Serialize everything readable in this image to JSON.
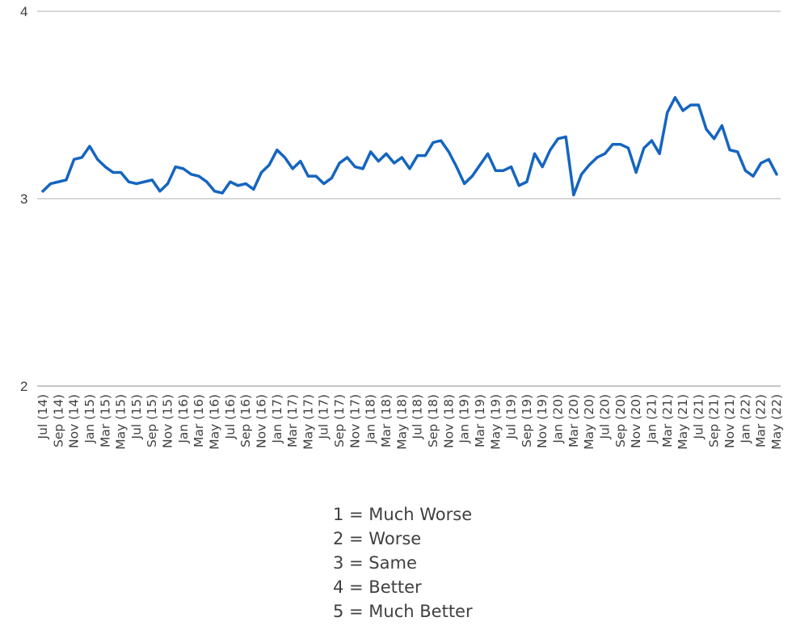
{
  "chart_data": {
    "type": "line",
    "title": "",
    "xlabel": "",
    "ylabel": "",
    "ylim": [
      2,
      4
    ],
    "yticks": [
      "2",
      "3",
      "4"
    ],
    "grid": "horizontal",
    "x": [
      "Jul (14)",
      "Aug (14)",
      "Sep (14)",
      "Oct (14)",
      "Nov (14)",
      "Dec (14)",
      "Jan (15)",
      "Feb (15)",
      "Mar (15)",
      "Apr (15)",
      "May (15)",
      "Jun (15)",
      "Jul (15)",
      "Aug (15)",
      "Sep (15)",
      "Oct (15)",
      "Nov (15)",
      "Dec (15)",
      "Jan (16)",
      "Feb (16)",
      "Mar (16)",
      "Apr (16)",
      "May (16)",
      "Jun (16)",
      "Jul (16)",
      "Aug (16)",
      "Sep (16)",
      "Oct (16)",
      "Nov (16)",
      "Dec (16)",
      "Jan (17)",
      "Feb (17)",
      "Mar (17)",
      "Apr (17)",
      "May (17)",
      "Jun (17)",
      "Jul (17)",
      "Aug (17)",
      "Sep (17)",
      "Oct (17)",
      "Nov (17)",
      "Dec (17)",
      "Jan (18)",
      "Feb (18)",
      "Mar (18)",
      "Apr (18)",
      "May (18)",
      "Jun (18)",
      "Jul (18)",
      "Aug (18)",
      "Sep (18)",
      "Oct (18)",
      "Nov (18)",
      "Dec (18)",
      "Jan (19)",
      "Feb (19)",
      "Mar (19)",
      "Apr (19)",
      "May (19)",
      "Jun (19)",
      "Jul (19)",
      "Aug (19)",
      "Sep (19)",
      "Oct (19)",
      "Nov (19)",
      "Dec (19)",
      "Jan (20)",
      "Feb (20)",
      "Mar (20)",
      "Apr (20)",
      "May (20)",
      "Jun (20)",
      "Jul (20)",
      "Aug (20)",
      "Sep (20)",
      "Oct (20)",
      "Nov (20)",
      "Dec (20)",
      "Jan (21)",
      "Feb (21)",
      "Mar (21)",
      "Apr (21)",
      "May (21)",
      "Jun (21)",
      "Jul (21)",
      "Aug (21)",
      "Sep (21)",
      "Oct (21)",
      "Nov (21)",
      "Dec (21)",
      "Jan (22)",
      "Feb (22)",
      "Mar (22)",
      "Apr (22)",
      "May (22)"
    ],
    "tick_labels": [
      "Jul (14)",
      "Sep (14)",
      "Nov (14)",
      "Jan (15)",
      "Mar (15)",
      "May (15)",
      "Jul (15)",
      "Sep (15)",
      "Nov (15)",
      "Jan (16)",
      "Mar (16)",
      "May (16)",
      "Jul (16)",
      "Sep (16)",
      "Nov (16)",
      "Jan (17)",
      "Mar (17)",
      "May (17)",
      "Jul (17)",
      "Sep (17)",
      "Nov (17)",
      "Jan (18)",
      "Mar (18)",
      "May (18)",
      "Jul (18)",
      "Sep (18)",
      "Nov (18)",
      "Jan (19)",
      "Mar (19)",
      "May (19)",
      "Jul (19)",
      "Sep (19)",
      "Nov (19)",
      "Jan (20)",
      "Mar (20)",
      "May (20)",
      "Jul (20)",
      "Sep (20)",
      "Nov (20)",
      "Jan (21)",
      "Mar (21)",
      "May (21)",
      "Jul (21)",
      "Sep (21)",
      "Nov (21)",
      "Jan (22)",
      "Mar (22)",
      "May (22)"
    ],
    "series": [
      {
        "color": "#1565C0",
        "values": [
          3.04,
          3.08,
          3.09,
          3.1,
          3.21,
          3.22,
          3.28,
          3.21,
          3.17,
          3.14,
          3.14,
          3.09,
          3.08,
          3.09,
          3.1,
          3.04,
          3.08,
          3.17,
          3.16,
          3.13,
          3.12,
          3.09,
          3.04,
          3.03,
          3.09,
          3.07,
          3.08,
          3.05,
          3.14,
          3.18,
          3.26,
          3.22,
          3.16,
          3.2,
          3.12,
          3.12,
          3.08,
          3.11,
          3.19,
          3.22,
          3.17,
          3.16,
          3.25,
          3.2,
          3.24,
          3.19,
          3.22,
          3.16,
          3.23,
          3.23,
          3.3,
          3.31,
          3.25,
          3.17,
          3.08,
          3.12,
          3.18,
          3.24,
          3.15,
          3.15,
          3.17,
          3.07,
          3.09,
          3.24,
          3.17,
          3.26,
          3.32,
          3.33,
          3.02,
          3.13,
          3.18,
          3.22,
          3.24,
          3.29,
          3.29,
          3.27,
          3.14,
          3.27,
          3.31,
          3.24,
          3.46,
          3.54,
          3.47,
          3.5,
          3.5,
          3.37,
          3.32,
          3.39,
          3.26,
          3.25,
          3.15,
          3.12,
          3.19,
          3.21,
          3.13
        ]
      }
    ]
  },
  "legend": {
    "items": [
      "1 = Much Worse",
      "2 = Worse",
      "3 = Same",
      "4 = Better",
      "5 = Much Better"
    ]
  }
}
